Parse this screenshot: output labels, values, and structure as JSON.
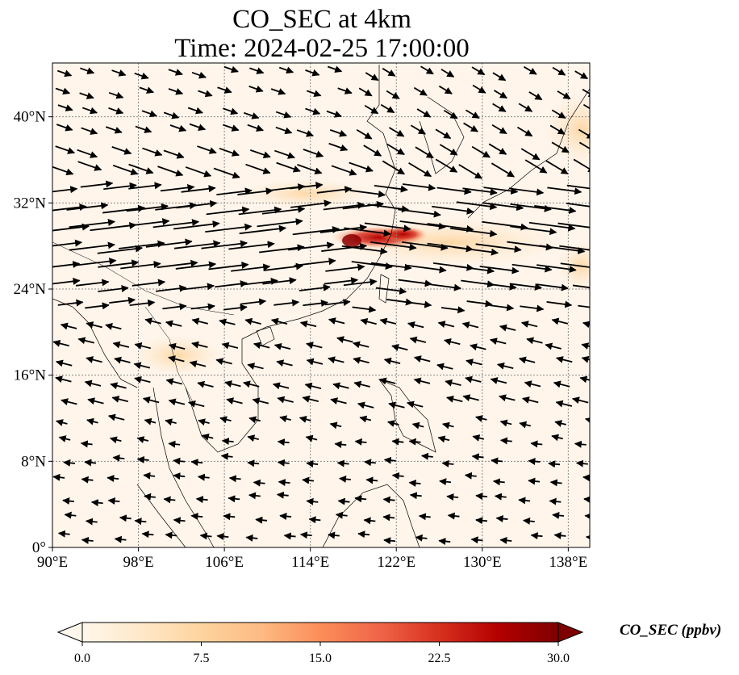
{
  "figure": {
    "title_line1": "CO_SEC at 4km",
    "title_line2": "Time: 2024-02-25 17:00:00"
  },
  "map": {
    "lon_range": [
      90,
      140
    ],
    "lat_range": [
      0,
      45
    ],
    "lon_ticks": [
      {
        "value": 90,
        "label": "90°E"
      },
      {
        "value": 98,
        "label": "98°E"
      },
      {
        "value": 106,
        "label": "106°E"
      },
      {
        "value": 114,
        "label": "114°E"
      },
      {
        "value": 122,
        "label": "122°E"
      },
      {
        "value": 130,
        "label": "130°E"
      },
      {
        "value": 138,
        "label": "138°E"
      }
    ],
    "lat_ticks": [
      {
        "value": 0,
        "label": "0°"
      },
      {
        "value": 8,
        "label": "8°N"
      },
      {
        "value": 16,
        "label": "16°N"
      },
      {
        "value": 24,
        "label": "24°N"
      },
      {
        "value": 32,
        "label": "32°N"
      },
      {
        "value": 40,
        "label": "40°N"
      }
    ],
    "gridlines": true,
    "background_color": "#fff5eb",
    "coastline_color": "#000000",
    "wind_vectors": true
  },
  "colorbar": {
    "label": "CO_SEC (ppbv)",
    "colormap": "OrRd",
    "range": [
      0,
      30
    ],
    "extend": "both",
    "ticks": [
      {
        "value": 0,
        "label": "0.0"
      },
      {
        "value": 7.5,
        "label": "7.5"
      },
      {
        "value": 15,
        "label": "15.0"
      },
      {
        "value": 22.5,
        "label": "22.5"
      },
      {
        "value": 30,
        "label": "30.0"
      }
    ],
    "colors": [
      "#fff7ec",
      "#fee8c8",
      "#fdd49e",
      "#fdbb84",
      "#fc8d59",
      "#ef6548",
      "#d7301f",
      "#b30000",
      "#7f0000"
    ]
  }
}
